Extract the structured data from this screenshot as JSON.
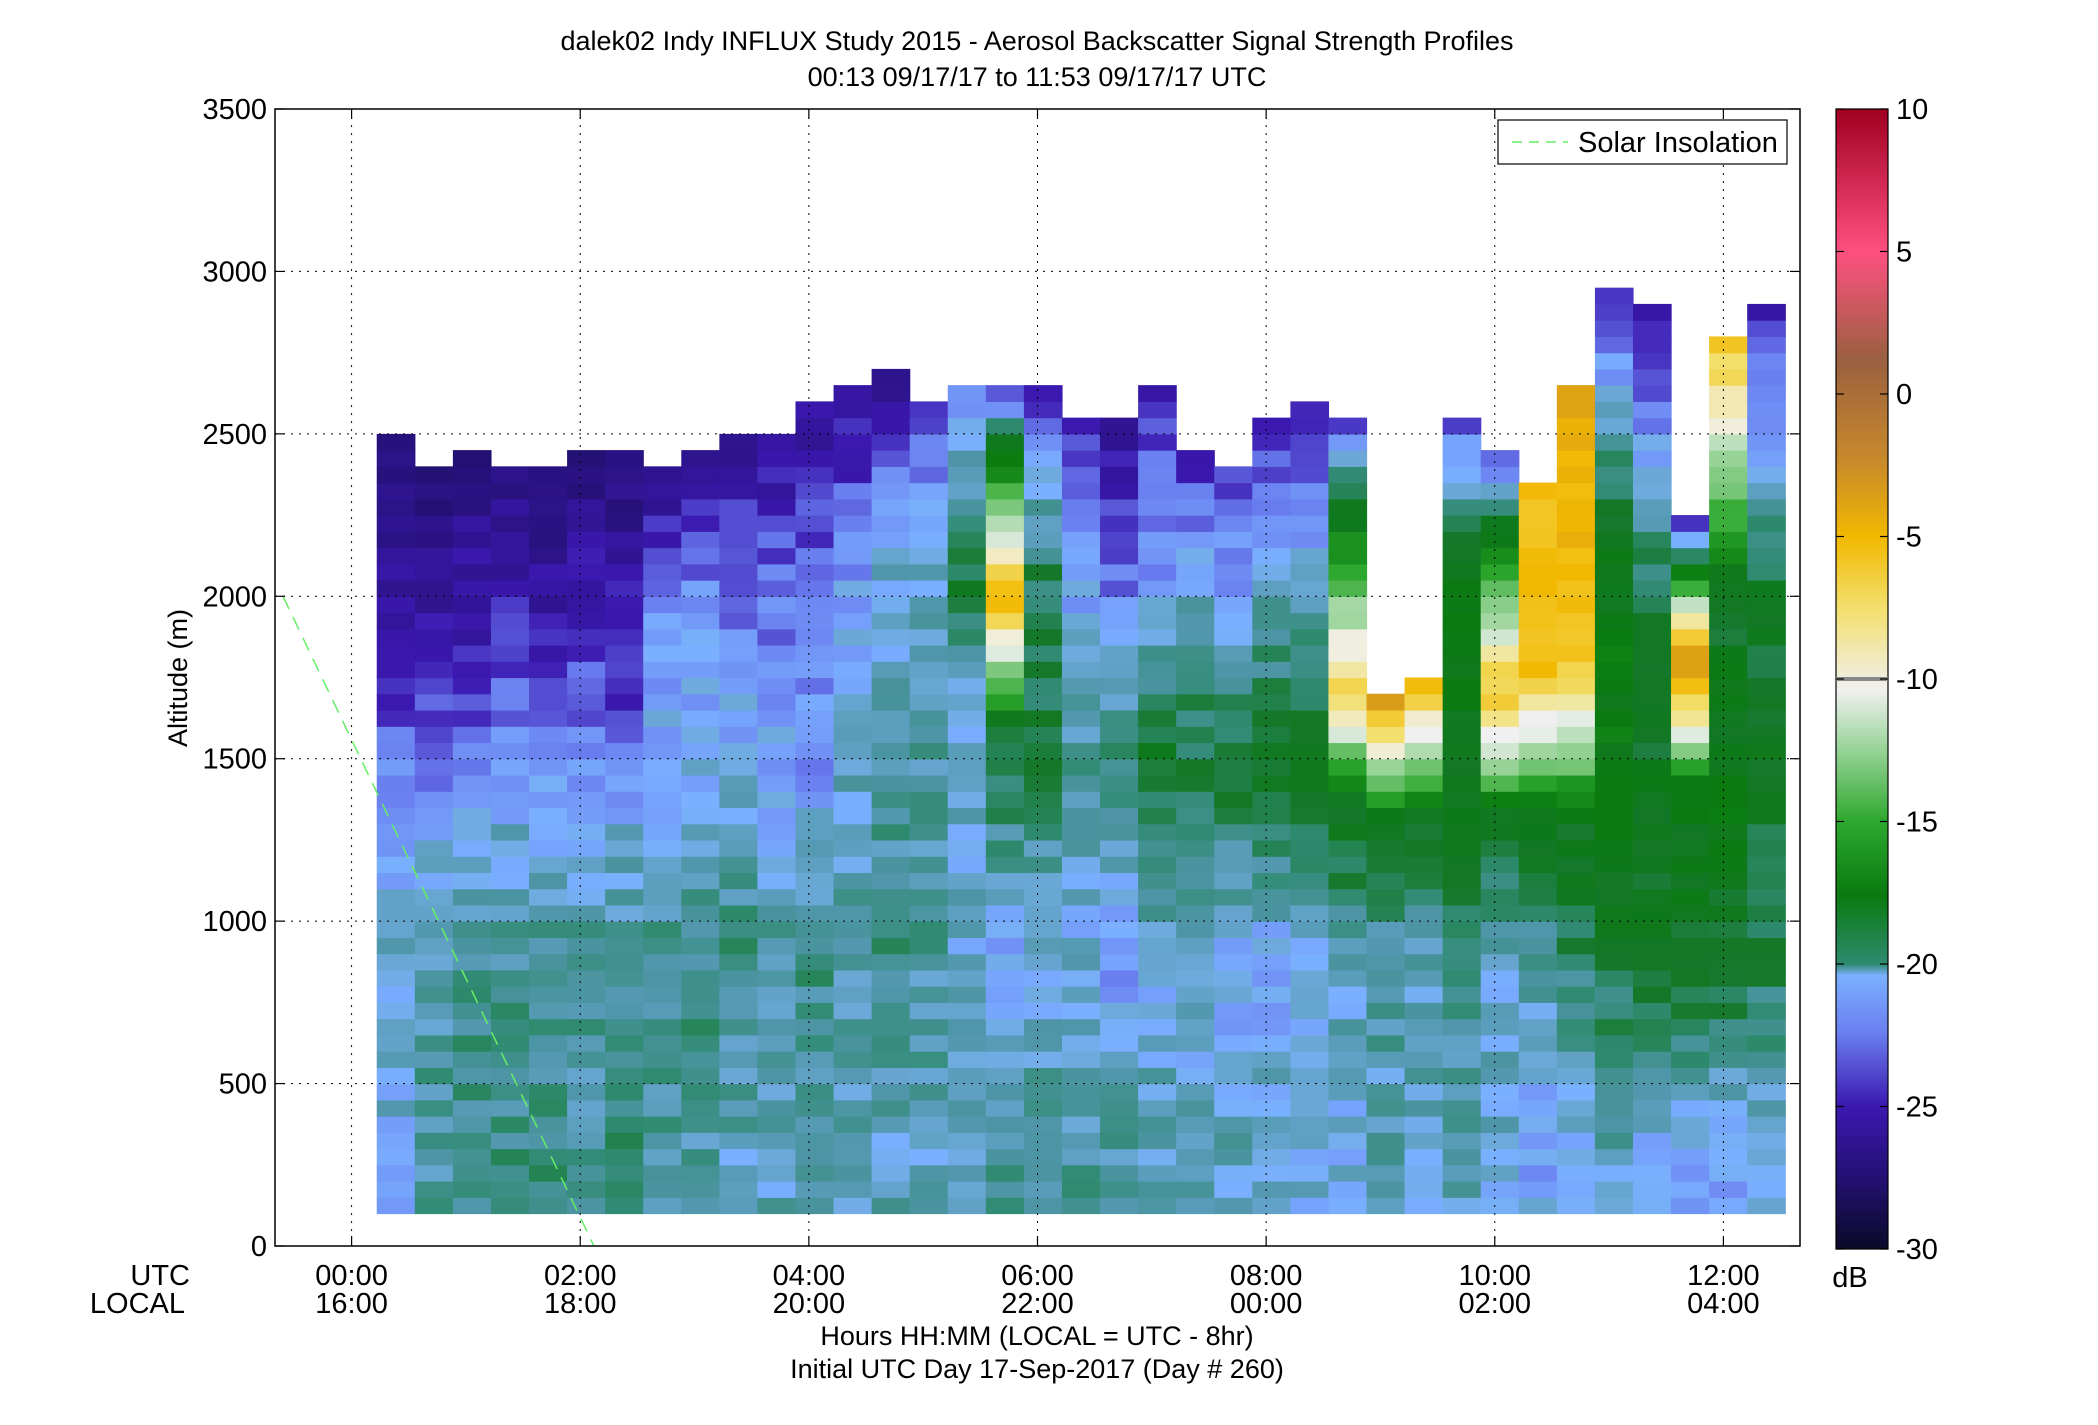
{
  "chart_data": {
    "type": "heatmap",
    "title": "dalek02 Indy INFLUX Study 2015 - Aerosol Backscatter Signal Strength Profiles",
    "subtitle": "00:13 09/17/17 to 11:53 09/17/17  UTC",
    "xlabel": "Hours HH:MM  (LOCAL = UTC - 8hr)",
    "xlabel2": "Initial UTC Day 17-Sep-2017 (Day # 260)",
    "ylabel": "Altitude (m)",
    "x_row_labels": [
      "UTC",
      "LOCAL"
    ],
    "xlim_hours_utc": [
      -0.67,
      12.67
    ],
    "ylim": [
      0,
      3500
    ],
    "x_ticks_hours_utc": [
      0,
      2,
      4,
      6,
      8,
      10,
      12
    ],
    "x_tick_labels_utc": [
      "00:00",
      "02:00",
      "04:00",
      "06:00",
      "08:00",
      "10:00",
      "12:00"
    ],
    "x_tick_labels_local": [
      "16:00",
      "18:00",
      "20:00",
      "22:00",
      "00:00",
      "02:00",
      "04:00"
    ],
    "y_ticks": [
      0,
      500,
      1000,
      1500,
      2000,
      2500,
      3000,
      3500
    ],
    "y_tick_labels": [
      "0",
      "500",
      "1000",
      "1500",
      "2000",
      "2500",
      "3000",
      "3500"
    ],
    "grid": true,
    "legend": {
      "entries": [
        "Solar Insolation"
      ],
      "placement": "top-right"
    },
    "solar_insolation_line": {
      "x_hours_utc": [
        -0.6,
        2.12
      ],
      "y": [
        2000,
        0
      ],
      "color": "#66ee66",
      "style": "dashed"
    },
    "colorbar": {
      "unit": "dB",
      "range": [
        -30,
        10
      ],
      "ticks": [
        -30,
        -25,
        -20,
        -15,
        -10,
        -5,
        0,
        5,
        10
      ],
      "tick_labels": [
        "-30",
        "-25",
        "-20",
        "-15",
        "-10",
        "-5",
        "0",
        "5",
        "10"
      ]
    },
    "heatmap_grid": {
      "time_start_hours_utc": 0.22,
      "time_step_hours": 0.333,
      "altitude_start_m": 100,
      "altitude_step_m": 50
    },
    "profiles": [
      {
        "top": 2500,
        "v": [
          [
            1000,
            -22
          ],
          [
            1500,
            -23.5
          ],
          [
            1700,
            -25
          ],
          [
            2500,
            -27
          ]
        ]
      },
      {
        "top": 2400,
        "v": [
          [
            800,
            -21
          ],
          [
            1200,
            -22
          ],
          [
            1500,
            -24
          ],
          [
            2400,
            -27
          ]
        ]
      },
      {
        "top": 2450,
        "v": [
          [
            300,
            -20.5
          ],
          [
            900,
            -21
          ],
          [
            1200,
            -22
          ],
          [
            1600,
            -24
          ],
          [
            2450,
            -27
          ]
        ]
      },
      {
        "top": 2400,
        "v": [
          [
            300,
            -20.5
          ],
          [
            900,
            -21
          ],
          [
            1300,
            -22
          ],
          [
            1700,
            -24
          ],
          [
            2400,
            -27
          ]
        ]
      },
      {
        "top": 2400,
        "v": [
          [
            400,
            -20.5
          ],
          [
            900,
            -21
          ],
          [
            1300,
            -22
          ],
          [
            1700,
            -24.5
          ],
          [
            2400,
            -27
          ]
        ]
      },
      {
        "top": 2450,
        "v": [
          [
            300,
            -21
          ],
          [
            900,
            -21
          ],
          [
            1300,
            -22
          ],
          [
            1700,
            -24
          ],
          [
            2450,
            -27
          ]
        ]
      },
      {
        "top": 2450,
        "v": [
          [
            400,
            -20.5
          ],
          [
            900,
            -21
          ],
          [
            1300,
            -22
          ],
          [
            1600,
            -24
          ],
          [
            2450,
            -27
          ]
        ]
      },
      {
        "top": 2400,
        "v": [
          [
            300,
            -21
          ],
          [
            900,
            -20.5
          ],
          [
            1300,
            -22
          ],
          [
            1900,
            -23
          ],
          [
            2400,
            -26.5
          ]
        ]
      },
      {
        "top": 2450,
        "v": [
          [
            300,
            -21
          ],
          [
            900,
            -20.5
          ],
          [
            1400,
            -22
          ],
          [
            2000,
            -23
          ],
          [
            2450,
            -26.5
          ]
        ]
      },
      {
        "top": 2500,
        "v": [
          [
            300,
            -21.5
          ],
          [
            900,
            -20.5
          ],
          [
            1500,
            -22
          ],
          [
            2100,
            -24
          ],
          [
            2500,
            -26
          ]
        ]
      },
      {
        "top": 2500,
        "v": [
          [
            300,
            -21.5
          ],
          [
            900,
            -21
          ],
          [
            1500,
            -22.5
          ],
          [
            2100,
            -24
          ],
          [
            2500,
            -26
          ]
        ]
      },
      {
        "top": 2600,
        "v": [
          [
            300,
            -21.5
          ],
          [
            900,
            -20.5
          ],
          [
            1500,
            -23
          ],
          [
            1900,
            -23
          ],
          [
            2600,
            -26
          ]
        ]
      },
      {
        "top": 2650,
        "v": [
          [
            300,
            -21.5
          ],
          [
            900,
            -21
          ],
          [
            1600,
            -22
          ],
          [
            2000,
            -22.5
          ],
          [
            2650,
            -26
          ]
        ]
      },
      {
        "top": 2700,
        "v": [
          [
            300,
            -21.5
          ],
          [
            900,
            -20.5
          ],
          [
            1700,
            -21.5
          ],
          [
            2100,
            -22
          ],
          [
            2700,
            -26
          ]
        ]
      },
      {
        "top": 2600,
        "v": [
          [
            300,
            -21.5
          ],
          [
            900,
            -21
          ],
          [
            1700,
            -21
          ],
          [
            2200,
            -22
          ],
          [
            2600,
            -25
          ]
        ]
      },
      {
        "top": 2650,
        "v": [
          [
            300,
            -21.5
          ],
          [
            900,
            -22
          ],
          [
            1800,
            -21.5
          ],
          [
            2000,
            -19
          ],
          [
            2650,
            -23.5
          ]
        ]
      },
      {
        "top": 2650,
        "v": [
          [
            300,
            -21
          ],
          [
            900,
            -22.5
          ],
          [
            1600,
            -19
          ],
          [
            2000,
            -5
          ],
          [
            2650,
            -24.5
          ]
        ]
      },
      {
        "top": 2650,
        "v": [
          [
            300,
            -21
          ],
          [
            900,
            -22
          ],
          [
            1600,
            -19.5
          ],
          [
            2100,
            -20
          ],
          [
            2650,
            -25
          ]
        ]
      },
      {
        "top": 2550,
        "v": [
          [
            300,
            -21
          ],
          [
            900,
            -22
          ],
          [
            1500,
            -21
          ],
          [
            2000,
            -22.5
          ],
          [
            2550,
            -25
          ]
        ]
      },
      {
        "top": 2550,
        "v": [
          [
            300,
            -21
          ],
          [
            900,
            -23
          ],
          [
            1500,
            -20
          ],
          [
            2000,
            -23.5
          ],
          [
            2550,
            -26
          ]
        ]
      },
      {
        "top": 2650,
        "v": [
          [
            300,
            -21.5
          ],
          [
            900,
            -22
          ],
          [
            1500,
            -19
          ],
          [
            2000,
            -22.5
          ],
          [
            2650,
            -25
          ]
        ]
      },
      {
        "top": 2450,
        "v": [
          [
            300,
            -21.5
          ],
          [
            900,
            -22
          ],
          [
            1500,
            -19.5
          ],
          [
            1900,
            -21
          ],
          [
            2450,
            -25
          ]
        ]
      },
      {
        "top": 2400,
        "v": [
          [
            300,
            -21.5
          ],
          [
            900,
            -22.5
          ],
          [
            1500,
            -19
          ],
          [
            1900,
            -22
          ],
          [
            2400,
            -24.5
          ]
        ]
      },
      {
        "top": 2550,
        "v": [
          [
            300,
            -21.5
          ],
          [
            900,
            -22.5
          ],
          [
            1500,
            -19
          ],
          [
            1900,
            -21
          ],
          [
            2550,
            -25
          ]
        ]
      },
      {
        "top": 2600,
        "v": [
          [
            300,
            -22
          ],
          [
            900,
            -22
          ],
          [
            1500,
            -18.5
          ],
          [
            1900,
            -21
          ],
          [
            2600,
            -25
          ]
        ]
      },
      {
        "top": 2550,
        "v": [
          [
            300,
            -22
          ],
          [
            900,
            -21.5
          ],
          [
            1400,
            -18
          ],
          [
            1700,
            -7
          ],
          [
            2550,
            -24.5
          ]
        ]
      },
      {
        "top": 1700,
        "v": [
          [
            300,
            -21.5
          ],
          [
            900,
            -21
          ],
          [
            1300,
            -19
          ],
          [
            1700,
            -3
          ]
        ]
      },
      {
        "top": 1750,
        "v": [
          [
            300,
            -21.5
          ],
          [
            900,
            -21.5
          ],
          [
            1300,
            -19
          ],
          [
            1750,
            -5
          ]
        ]
      },
      {
        "top": 2550,
        "v": [
          [
            300,
            -21.5
          ],
          [
            900,
            -20.5
          ],
          [
            1300,
            -18.5
          ],
          [
            2000,
            -18
          ],
          [
            2550,
            -24
          ]
        ]
      },
      {
        "top": 2450,
        "v": [
          [
            300,
            -22
          ],
          [
            900,
            -21.5
          ],
          [
            1300,
            -19
          ],
          [
            1700,
            -6
          ],
          [
            2450,
            -24.5
          ]
        ]
      },
      {
        "top": 2350,
        "v": [
          [
            300,
            -22.5
          ],
          [
            900,
            -21
          ],
          [
            1300,
            -18.5
          ],
          [
            1800,
            -5
          ],
          [
            2350,
            -6
          ]
        ]
      },
      {
        "top": 2650,
        "v": [
          [
            300,
            -22.5
          ],
          [
            900,
            -20
          ],
          [
            1300,
            -18.5
          ],
          [
            1800,
            -6
          ],
          [
            2650,
            -4
          ]
        ]
      },
      {
        "top": 2950,
        "v": [
          [
            300,
            -21.5
          ],
          [
            900,
            -19.5
          ],
          [
            1300,
            -17.5
          ],
          [
            2100,
            -18
          ],
          [
            2950,
            -25
          ]
        ]
      },
      {
        "top": 2900,
        "v": [
          [
            300,
            -22
          ],
          [
            900,
            -19
          ],
          [
            1400,
            -18.5
          ],
          [
            2100,
            -20
          ],
          [
            2900,
            -26
          ]
        ]
      },
      {
        "top": 2250,
        "v": [
          [
            300,
            -22.5
          ],
          [
            900,
            -19
          ],
          [
            1400,
            -18
          ],
          [
            1800,
            -2
          ],
          [
            2250,
            -26
          ]
        ]
      },
      {
        "top": 2800,
        "v": [
          [
            300,
            -22.5
          ],
          [
            900,
            -19
          ],
          [
            1400,
            -18
          ],
          [
            2000,
            -19
          ],
          [
            2800,
            -6
          ]
        ]
      },
      {
        "top": 2900,
        "v": [
          [
            300,
            -22.5
          ],
          [
            900,
            -19.5
          ],
          [
            1400,
            -19
          ],
          [
            2000,
            -19
          ],
          [
            2900,
            -25
          ]
        ]
      }
    ]
  }
}
